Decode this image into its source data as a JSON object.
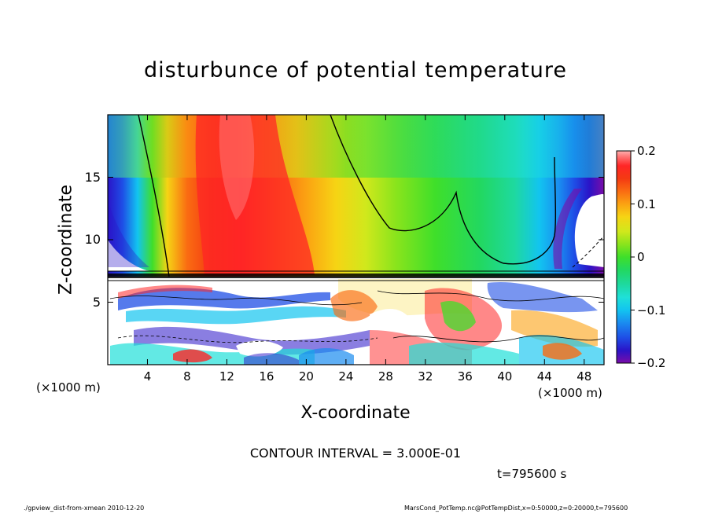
{
  "chart_data": {
    "type": "heatmap",
    "title": "disturbunce of potential temperature",
    "xlabel": "X-coordinate",
    "ylabel": "Z-coordinate",
    "x_unit_left": "(×1000 m)",
    "x_unit_right": "(×1000 m)",
    "x_ticks": [
      "4",
      "8",
      "12",
      "16",
      "20",
      "24",
      "28",
      "32",
      "36",
      "40",
      "44",
      "48"
    ],
    "x_tick_values": [
      4,
      8,
      12,
      16,
      20,
      24,
      28,
      32,
      36,
      40,
      44,
      48
    ],
    "y_ticks": [
      "5",
      "10",
      "15"
    ],
    "y_tick_values": [
      5,
      10,
      15
    ],
    "xlim": [
      0,
      50
    ],
    "ylim": [
      0,
      20
    ],
    "colorbar": {
      "ticks": [
        "0.2",
        "0.1",
        "0",
        "−0.1",
        "−0.2"
      ],
      "tick_values": [
        0.2,
        0.1,
        0,
        -0.1,
        -0.2
      ],
      "range": [
        -0.2,
        0.2
      ],
      "colors": [
        "#7a0da8",
        "#2a14c8",
        "#1e4ee6",
        "#1a8cf0",
        "#12c4f0",
        "#1fe0d8",
        "#1ed9a0",
        "#22d860",
        "#3fdf2a",
        "#8ae41c",
        "#d0e81c",
        "#f6d414",
        "#fba212",
        "#fa6c12",
        "#f43a12",
        "#ff2626",
        "#ff6e6e",
        "#ffb0b0"
      ]
    },
    "zones": [
      {
        "region": "upper layer",
        "z_range": [
          7.5,
          20
        ],
        "description_values": {
          "left_edge": -0.2,
          "x_8_to_24": 0.15,
          "x_26_to_44": 0.0,
          "right_edge": -0.2
        }
      },
      {
        "region": "lower layer",
        "z_range": [
          0,
          7.5
        ],
        "values": "mixed -0.2 to 0.2"
      }
    ],
    "contour_interval": "CONTOUR INTERVAL = 3.000E-01"
  },
  "annotations": {
    "time": "t=795600 s",
    "footer_left": "./gpview_dist-from-xmean  2010-12-20",
    "footer_right": "MarsCond_PotTemp.nc@PotTempDist,x=0:50000,z=0:20000,t=795600"
  }
}
